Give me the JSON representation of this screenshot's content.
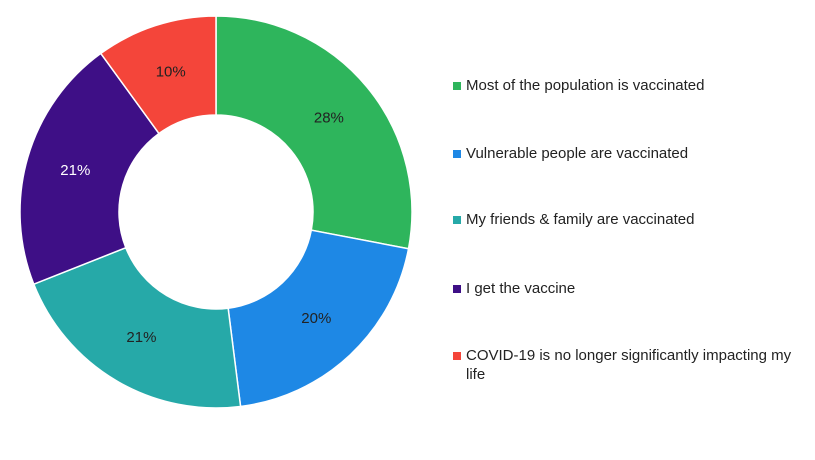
{
  "chart_data": {
    "type": "donut",
    "categories": [
      "Most of the population is vaccinated",
      "Vulnerable people are vaccinated",
      "My friends & family are vaccinated",
      "I get the vaccine",
      "COVID-19 is no longer significantly impacting my life"
    ],
    "values": [
      28,
      20,
      21,
      21,
      10
    ],
    "value_labels": [
      "28%",
      "20%",
      "21%",
      "21%",
      "10%"
    ],
    "colors": [
      "#2eb55c",
      "#1e88e5",
      "#26a9a8",
      "#3e0f86",
      "#f4453a"
    ],
    "legend": "right"
  }
}
